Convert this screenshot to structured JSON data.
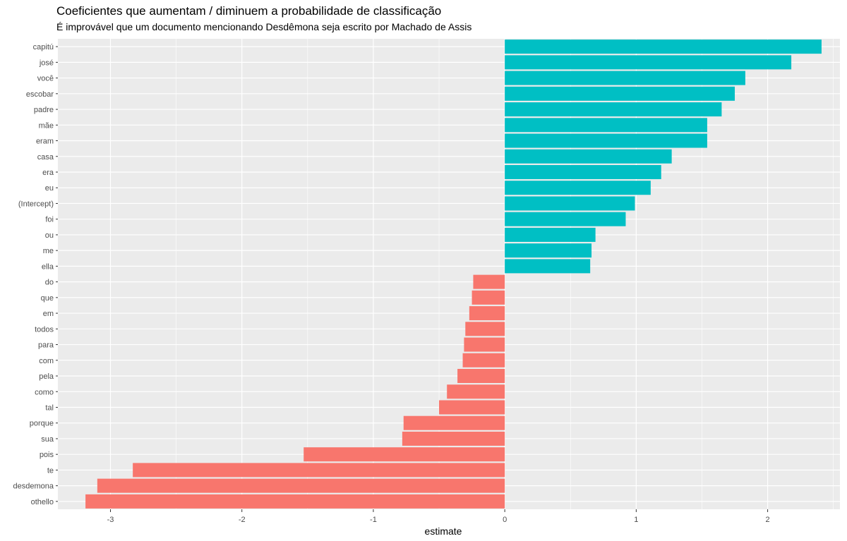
{
  "chart_data": {
    "type": "bar",
    "orientation": "horizontal",
    "title": "Coeficientes que aumentam / diminuem a probabilidade de classificação",
    "subtitle": "É improvável que um documento mencionando Desdêmona seja escrito por Machado de Assis",
    "xlabel": "estimate",
    "ylabel": "",
    "xlim": [
      -3.4,
      2.55
    ],
    "x_ticks": [
      -3,
      -2,
      -1,
      0,
      1,
      2
    ],
    "grid": true,
    "colors": {
      "positive": "#00BFC4",
      "negative": "#F8766D",
      "panel": "#EBEBEB",
      "grid": "#FFFFFF"
    },
    "categories": [
      "capitú",
      "josé",
      "você",
      "escobar",
      "padre",
      "mãe",
      "eram",
      "casa",
      "era",
      "eu",
      "(Intercept)",
      "foi",
      "ou",
      "me",
      "ella",
      "do",
      "que",
      "em",
      "todos",
      "para",
      "com",
      "pela",
      "como",
      "tal",
      "porque",
      "sua",
      "pois",
      "te",
      "desdemona",
      "othello"
    ],
    "values": [
      2.41,
      2.18,
      1.83,
      1.75,
      1.65,
      1.54,
      1.54,
      1.27,
      1.19,
      1.11,
      0.99,
      0.92,
      0.69,
      0.66,
      0.65,
      -0.24,
      -0.25,
      -0.27,
      -0.3,
      -0.31,
      -0.32,
      -0.36,
      -0.44,
      -0.5,
      -0.77,
      -0.78,
      -1.53,
      -2.83,
      -3.1,
      -3.19
    ]
  }
}
